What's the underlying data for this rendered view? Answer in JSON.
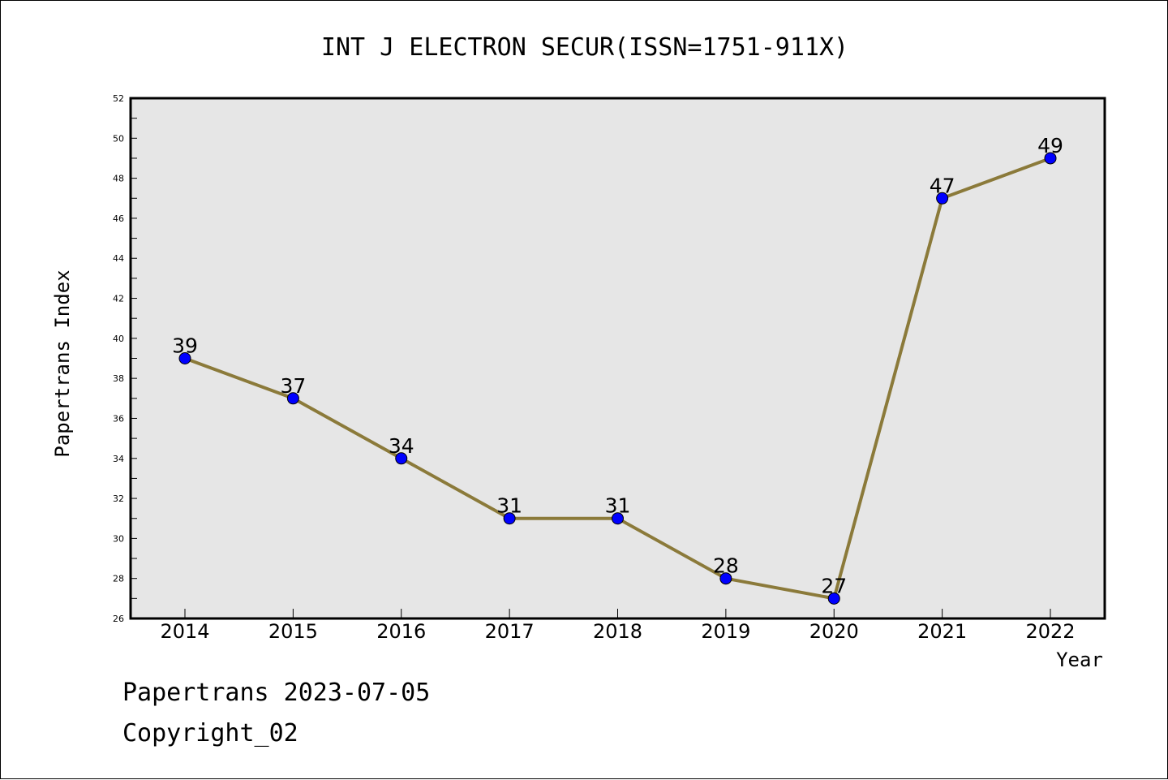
{
  "chart_data": {
    "type": "line",
    "title": "INT J ELECTRON SECUR(ISSN=1751-911X)",
    "xlabel": "Year",
    "ylabel": "Papertrans Index",
    "categories": [
      "2014",
      "2015",
      "2016",
      "2017",
      "2018",
      "2019",
      "2020",
      "2021",
      "2022"
    ],
    "series": [
      {
        "values": [
          39,
          37,
          34,
          31,
          31,
          28,
          27,
          47,
          49
        ]
      }
    ],
    "data_labels": [
      "39",
      "37",
      "34",
      "31",
      "31",
      "28",
      "27",
      "47",
      "49"
    ],
    "ylim": [
      26,
      52
    ],
    "y_ticks": [
      "26",
      "28",
      "30",
      "32",
      "34",
      "36",
      "38",
      "40",
      "42",
      "44",
      "46",
      "48",
      "50",
      "52"
    ],
    "grid": false,
    "legend": "none",
    "colors": {
      "line": "#8b7a3a",
      "marker": "#0000ff",
      "plot_background": "#e6e6e6"
    }
  },
  "footer": {
    "date_text": "Papertrans 2023-07-05",
    "copyright_text": "Copyright_02"
  }
}
